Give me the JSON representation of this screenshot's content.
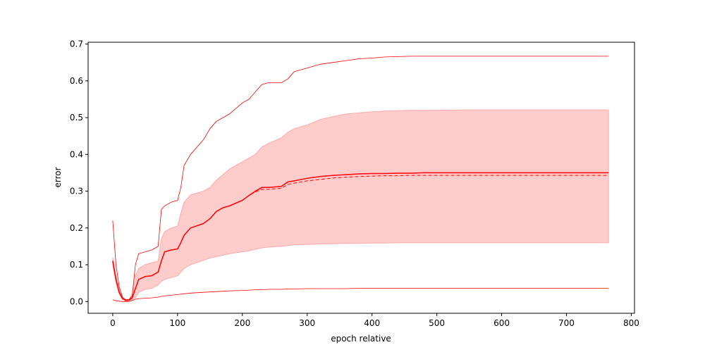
{
  "chart_data": {
    "type": "line",
    "title": "",
    "xlabel": "epoch relative",
    "ylabel": "error",
    "xlim": [
      -38,
      805
    ],
    "ylim": [
      -0.032,
      0.705
    ],
    "xticks": [
      0,
      100,
      200,
      300,
      400,
      500,
      600,
      700,
      800
    ],
    "yticks": [
      0.0,
      0.1,
      0.2,
      0.3,
      0.4,
      0.5,
      0.6,
      0.7
    ],
    "xtick_labels": [
      "0",
      "100",
      "200",
      "300",
      "400",
      "500",
      "600",
      "700",
      "800"
    ],
    "ytick_labels": [
      "0.0",
      "0.1",
      "0.2",
      "0.3",
      "0.4",
      "0.5",
      "0.6",
      "0.7"
    ],
    "grid": false,
    "legend": "none",
    "color": "#ff0000",
    "band_color": "#ffcccc",
    "x": [
      0,
      5,
      10,
      15,
      20,
      25,
      30,
      35,
      40,
      50,
      60,
      70,
      75,
      80,
      90,
      100,
      105,
      110,
      120,
      140,
      150,
      160,
      170,
      180,
      200,
      210,
      220,
      230,
      240,
      260,
      270,
      280,
      300,
      320,
      340,
      360,
      380,
      400,
      420,
      440,
      460,
      480,
      500,
      550,
      600,
      650,
      700,
      765
    ],
    "series": [
      {
        "style": "solid",
        "values": [
          0.11,
          0.06,
          0.025,
          0.008,
          0.003,
          0.004,
          0.01,
          0.035,
          0.06,
          0.068,
          0.07,
          0.08,
          0.11,
          0.135,
          0.14,
          0.143,
          0.16,
          0.18,
          0.2,
          0.212,
          0.225,
          0.245,
          0.255,
          0.26,
          0.275,
          0.288,
          0.3,
          0.31,
          0.31,
          0.313,
          0.325,
          0.328,
          0.335,
          0.34,
          0.343,
          0.345,
          0.347,
          0.348,
          0.348,
          0.349,
          0.349,
          0.35,
          0.35,
          0.35,
          0.35,
          0.35,
          0.35,
          0.35
        ]
      },
      {
        "style": "dashed",
        "values": [
          0.11,
          0.06,
          0.025,
          0.008,
          0.003,
          0.004,
          0.01,
          0.035,
          0.06,
          0.068,
          0.07,
          0.08,
          0.11,
          0.135,
          0.14,
          0.143,
          0.16,
          0.18,
          0.2,
          0.212,
          0.225,
          0.245,
          0.255,
          0.26,
          0.275,
          0.288,
          0.298,
          0.305,
          0.305,
          0.308,
          0.318,
          0.322,
          0.328,
          0.332,
          0.336,
          0.338,
          0.34,
          0.341,
          0.342,
          0.342,
          0.343,
          0.343,
          0.343,
          0.343,
          0.343,
          0.343,
          0.343,
          0.343
        ]
      },
      {
        "style": "max",
        "values": [
          0.22,
          0.1,
          0.04,
          0.012,
          0.005,
          0.005,
          0.015,
          0.1,
          0.13,
          0.135,
          0.14,
          0.15,
          0.25,
          0.26,
          0.27,
          0.275,
          0.31,
          0.37,
          0.4,
          0.44,
          0.47,
          0.49,
          0.5,
          0.51,
          0.54,
          0.55,
          0.57,
          0.59,
          0.595,
          0.595,
          0.605,
          0.625,
          0.635,
          0.645,
          0.65,
          0.655,
          0.66,
          0.662,
          0.665,
          0.666,
          0.667,
          0.667,
          0.667,
          0.667,
          0.667,
          0.667,
          0.667,
          0.667
        ]
      },
      {
        "style": "min",
        "values": [
          0.005,
          0.002,
          0.001,
          0.0,
          0.0,
          0.0,
          0.003,
          0.006,
          0.008,
          0.009,
          0.01,
          0.012,
          0.014,
          0.015,
          0.017,
          0.019,
          0.02,
          0.021,
          0.023,
          0.025,
          0.026,
          0.027,
          0.028,
          0.029,
          0.03,
          0.031,
          0.032,
          0.032,
          0.033,
          0.033,
          0.034,
          0.034,
          0.035,
          0.035,
          0.035,
          0.035,
          0.036,
          0.036,
          0.036,
          0.036,
          0.036,
          0.036,
          0.036,
          0.036,
          0.036,
          0.036,
          0.036,
          0.036
        ]
      }
    ],
    "band": {
      "upper": [
        0.12,
        0.07,
        0.03,
        0.01,
        0.004,
        0.006,
        0.02,
        0.07,
        0.09,
        0.1,
        0.105,
        0.11,
        0.17,
        0.19,
        0.2,
        0.205,
        0.24,
        0.27,
        0.29,
        0.3,
        0.31,
        0.33,
        0.345,
        0.36,
        0.38,
        0.39,
        0.4,
        0.42,
        0.43,
        0.445,
        0.46,
        0.47,
        0.48,
        0.495,
        0.503,
        0.51,
        0.513,
        0.516,
        0.518,
        0.519,
        0.52,
        0.52,
        0.52,
        0.521,
        0.521,
        0.521,
        0.521,
        0.521
      ],
      "lower": [
        0.1,
        0.05,
        0.02,
        0.006,
        0.002,
        0.002,
        0.005,
        0.01,
        0.025,
        0.033,
        0.036,
        0.045,
        0.055,
        0.06,
        0.065,
        0.07,
        0.08,
        0.09,
        0.1,
        0.112,
        0.118,
        0.122,
        0.126,
        0.13,
        0.135,
        0.138,
        0.142,
        0.146,
        0.148,
        0.15,
        0.152,
        0.154,
        0.155,
        0.156,
        0.157,
        0.158,
        0.158,
        0.159,
        0.159,
        0.16,
        0.16,
        0.16,
        0.16,
        0.16,
        0.16,
        0.16,
        0.16,
        0.16
      ]
    }
  }
}
